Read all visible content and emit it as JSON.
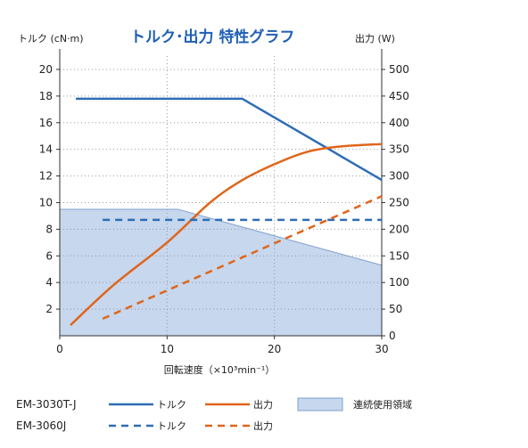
{
  "chart_data": {
    "type": "line",
    "title": "トルク･出力 特性グラフ",
    "xlabel": "回転速度（×10³min⁻¹）",
    "ylabel_left": "トルク (cN·m)",
    "ylabel_right": "出力 (W)",
    "xlim": [
      0,
      30
    ],
    "ylim_left": [
      0,
      21
    ],
    "ylim_right": [
      0,
      525
    ],
    "xticks": [
      0,
      10,
      20,
      30
    ],
    "yticks_left": [
      2,
      4,
      6,
      8,
      10,
      12,
      14,
      16,
      18,
      20
    ],
    "yticks_right": [
      0,
      50,
      100,
      150,
      200,
      250,
      300,
      350,
      400,
      450,
      500
    ],
    "grid": "dotted",
    "continuous_region": {
      "label": "連続使用領域",
      "axis": "left",
      "x": [
        0,
        0,
        11,
        30,
        30
      ],
      "y": [
        0,
        9.5,
        9.5,
        5.3,
        0
      ]
    },
    "series": [
      {
        "model": "EM-3030T-J",
        "label": "トルク",
        "axis": "left",
        "style": "solid",
        "color": "#2e6db5",
        "x": [
          1.5,
          17,
          30
        ],
        "y": [
          17.8,
          17.8,
          11.7
        ]
      },
      {
        "model": "EM-3030T-J",
        "label": "出力",
        "axis": "right",
        "style": "solid",
        "color": "#e0651a",
        "x": [
          1,
          5,
          10,
          14,
          17,
          20,
          23,
          26,
          30
        ],
        "y": [
          20,
          95,
          175,
          250,
          292,
          322,
          345,
          355,
          360
        ]
      },
      {
        "model": "EM-3060J",
        "label": "トルク",
        "axis": "left",
        "style": "dashed",
        "color": "#2e6db5",
        "x": [
          4,
          30
        ],
        "y": [
          8.7,
          8.7
        ]
      },
      {
        "model": "EM-3060J",
        "label": "出力",
        "axis": "right",
        "style": "dashed",
        "color": "#e0651a",
        "x": [
          4,
          30
        ],
        "y": [
          32,
          262
        ]
      }
    ],
    "legend": {
      "rows": [
        {
          "model": "EM-3030T-J",
          "torque": "トルク",
          "power": "出力",
          "region": "連続使用領域"
        },
        {
          "model": "EM-3060J",
          "torque": "トルク",
          "power": "出力"
        }
      ]
    }
  }
}
